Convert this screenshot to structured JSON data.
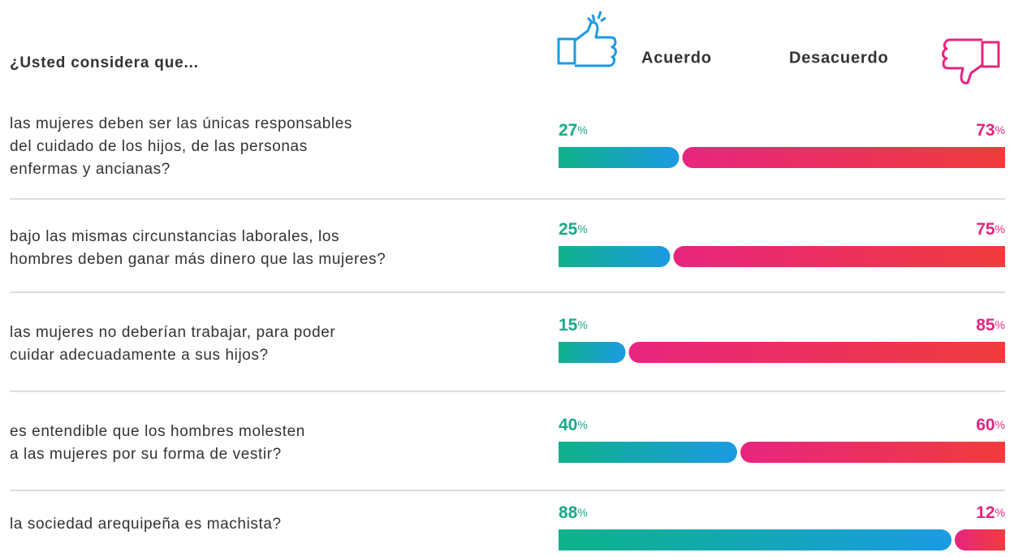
{
  "chart_data": {
    "type": "stacked-bar",
    "title": "¿Usted considera que...",
    "categories": [
      [
        "las mujeres deben ser las únicas responsables",
        "del cuidado de los hijos, de las personas",
        "enfermas y ancianas?"
      ],
      [
        "bajo las mismas circunstancias laborales, los",
        "hombres deben ganar más dinero que las mujeres?"
      ],
      [
        "las mujeres no deberían trabajar, para poder",
        "cuidar adecuadamente a sus hijos?"
      ],
      [
        "es entendible que los hombres molesten",
        "a las mujeres por su forma de vestir?"
      ],
      [
        "la sociedad arequipeña es machista?"
      ]
    ],
    "series": [
      {
        "name": "Acuerdo",
        "color": [
          "#0fb28a",
          "#1b9be3"
        ],
        "label_color": "#17a98b",
        "values": [
          27,
          25,
          15,
          40,
          88
        ]
      },
      {
        "name": "Desacuerdo",
        "color": [
          "#e8257f",
          "#f03c3c"
        ],
        "label_color": "#e5257f",
        "values": [
          73,
          75,
          85,
          60,
          12
        ]
      }
    ],
    "unit": "%",
    "xlim": [
      0,
      100
    ]
  }
}
